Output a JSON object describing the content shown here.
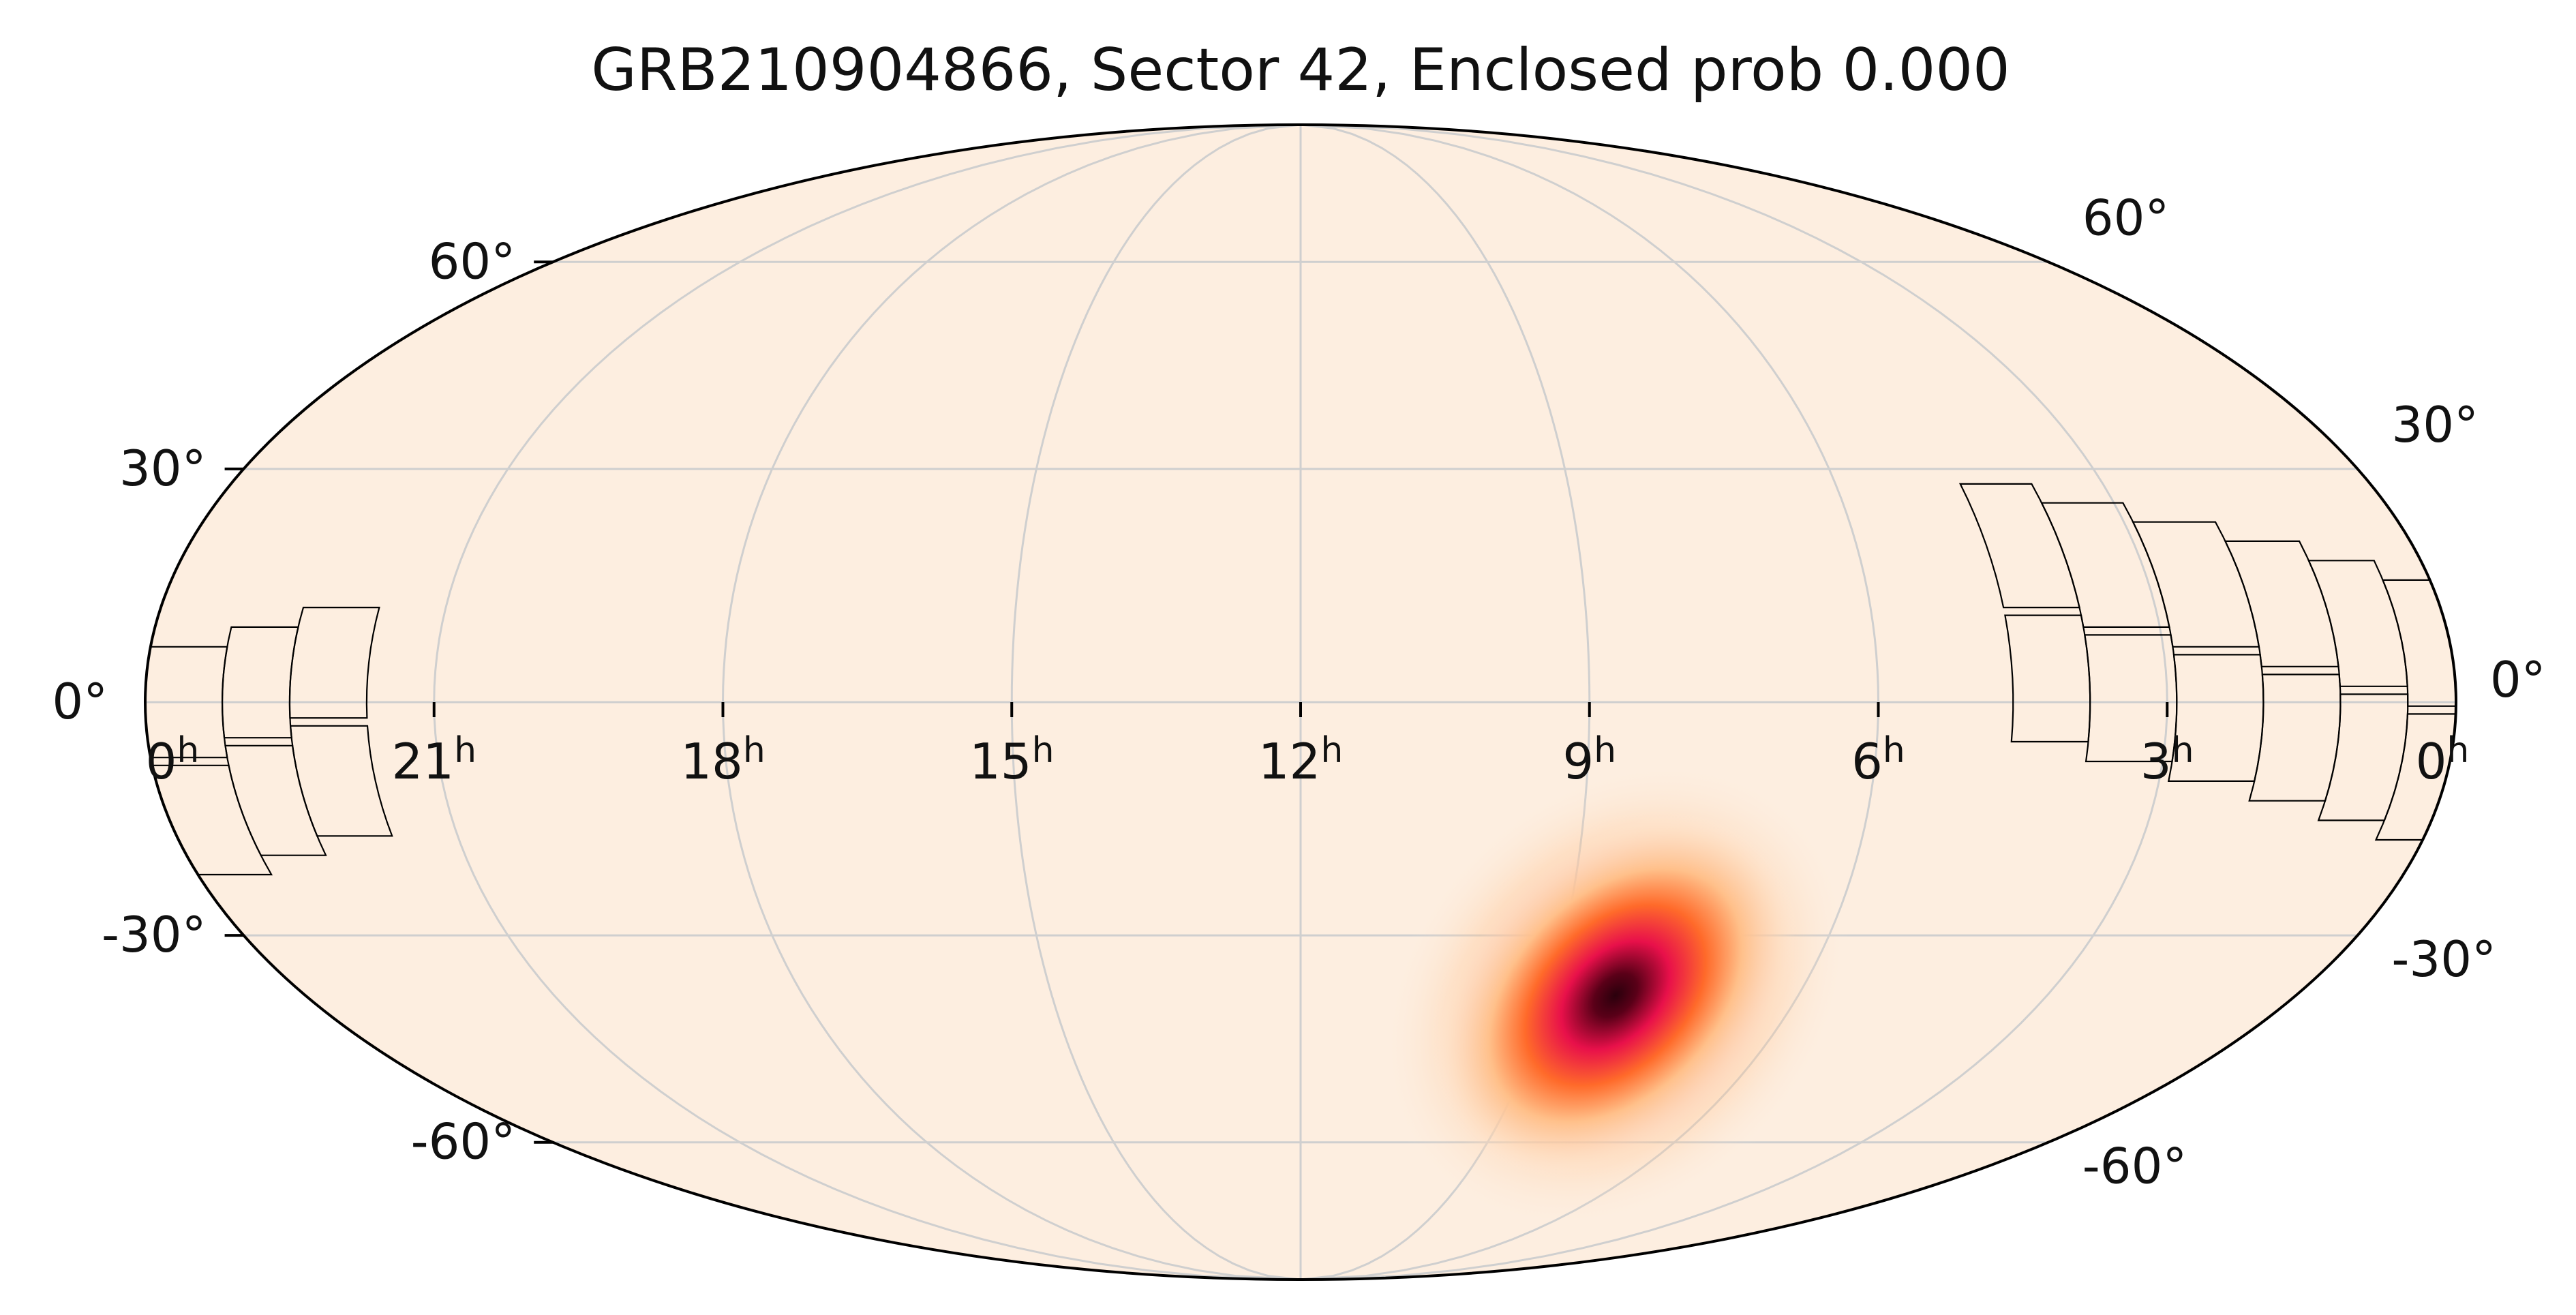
{
  "title": "GRB210904866, Sector 42, Enclosed prob 0.000",
  "projection": "mollweide",
  "ra_ticks": [
    {
      "ra_hours": 0,
      "label": "0",
      "sup": "h"
    },
    {
      "ra_hours": 21,
      "label": "21",
      "sup": "h"
    },
    {
      "ra_hours": 18,
      "label": "18",
      "sup": "h"
    },
    {
      "ra_hours": 15,
      "label": "15",
      "sup": "h"
    },
    {
      "ra_hours": 12,
      "label": "12",
      "sup": "h"
    },
    {
      "ra_hours": 9,
      "label": "9",
      "sup": "h"
    },
    {
      "ra_hours": 6,
      "label": "6",
      "sup": "h"
    },
    {
      "ra_hours": 3,
      "label": "3",
      "sup": "h"
    },
    {
      "ra_hours": 0,
      "label": "0",
      "sup": "h"
    }
  ],
  "dec_ticks_left": [
    {
      "dec": 60,
      "label": "60°"
    },
    {
      "dec": 30,
      "label": "30°"
    },
    {
      "dec": 0,
      "label": "0°"
    },
    {
      "dec": -30,
      "label": "-30°"
    },
    {
      "dec": -60,
      "label": "-60°"
    }
  ],
  "dec_ticks_right": [
    {
      "dec": 60,
      "label": "60°"
    },
    {
      "dec": 30,
      "label": "30°"
    },
    {
      "dec": 0,
      "label": "0°"
    },
    {
      "dec": -30,
      "label": "-30°"
    },
    {
      "dec": -60,
      "label": "-60°"
    }
  ],
  "grid": true,
  "colors": {
    "background": "#fdeee0",
    "grid": "#cfcfcf",
    "outline": "#000000",
    "heat_core": "#3a0010",
    "heat_mid": "#e8104a",
    "heat_outer": "#ff8a3c"
  },
  "probability_peak": {
    "ra_hours": 8.4,
    "dec": -38
  },
  "tess_sector_footprints": [
    {
      "camera_block": "east",
      "ra_range_hours": [
        0.2,
        4.6
      ],
      "dec_range": [
        -6,
        28
      ]
    },
    {
      "camera_block": "west",
      "ra_range_hours": [
        21.6,
        24.0
      ],
      "dec_range": [
        -22,
        6
      ]
    }
  ]
}
